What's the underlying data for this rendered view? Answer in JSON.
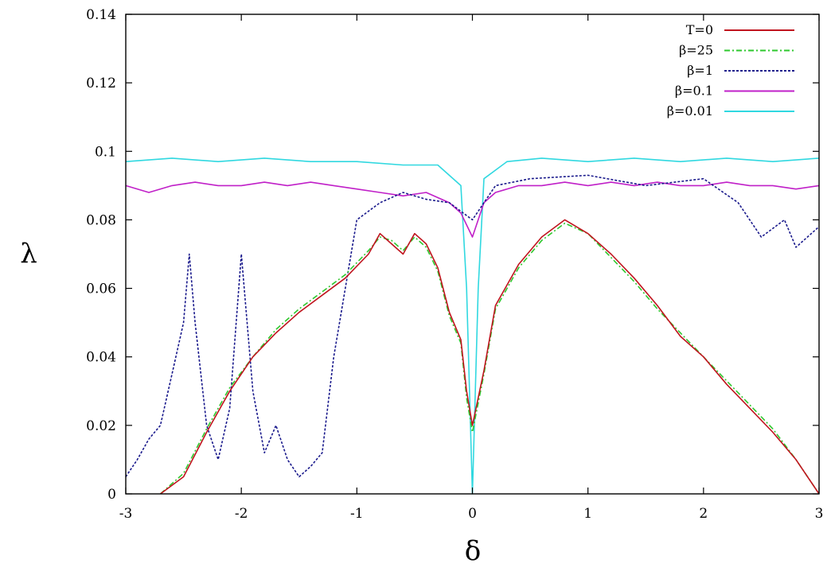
{
  "chart_data": {
    "type": "line",
    "title": "",
    "xlabel": "δ",
    "ylabel": "λ",
    "xlim": [
      -3,
      3
    ],
    "ylim": [
      0,
      0.14
    ],
    "xticks": [
      -3,
      -2,
      -1,
      0,
      1,
      2,
      3
    ],
    "xtick_labels": [
      "-3",
      "-2",
      "-1",
      "0",
      "1",
      "2",
      "3"
    ],
    "yticks": [
      0,
      0.02,
      0.04,
      0.06,
      0.08,
      0.1,
      0.12,
      0.14
    ],
    "ytick_labels": [
      "0",
      "0.02",
      "0.04",
      "0.06",
      "0.08",
      "0.1",
      "0.12",
      "0.14"
    ],
    "grid": false,
    "legend_position": "top-right",
    "colors": {
      "T=0": "#c0141e",
      "β=25": "#2ec82e",
      "β=1": "#1a1a8c",
      "β=0.1": "#c020c8",
      "β=0.01": "#30d8e0"
    },
    "series": [
      {
        "name": "T=0",
        "style": "solid",
        "x": [
          -2.7,
          -2.5,
          -2.3,
          -2.1,
          -1.9,
          -1.7,
          -1.5,
          -1.3,
          -1.1,
          -0.9,
          -0.8,
          -0.7,
          -0.6,
          -0.5,
          -0.4,
          -0.3,
          -0.2,
          -0.1,
          -0.05,
          0.0,
          0.1,
          0.2,
          0.4,
          0.6,
          0.8,
          1.0,
          1.2,
          1.4,
          1.6,
          1.8,
          2.0,
          2.2,
          2.4,
          2.6,
          2.8,
          3.0
        ],
        "y": [
          0.0,
          0.005,
          0.018,
          0.03,
          0.04,
          0.047,
          0.053,
          0.058,
          0.063,
          0.07,
          0.076,
          0.073,
          0.07,
          0.076,
          0.073,
          0.066,
          0.053,
          0.045,
          0.03,
          0.02,
          0.036,
          0.055,
          0.067,
          0.075,
          0.08,
          0.076,
          0.07,
          0.063,
          0.055,
          0.046,
          0.04,
          0.032,
          0.025,
          0.018,
          0.01,
          0.0
        ]
      },
      {
        "name": "β=25",
        "style": "dash-dot",
        "x": [
          -2.7,
          -2.5,
          -2.3,
          -2.1,
          -1.9,
          -1.7,
          -1.5,
          -1.3,
          -1.1,
          -0.9,
          -0.8,
          -0.7,
          -0.6,
          -0.5,
          -0.4,
          -0.3,
          -0.2,
          -0.1,
          -0.05,
          0.0,
          0.1,
          0.2,
          0.4,
          0.6,
          0.8,
          1.0,
          1.2,
          1.4,
          1.6,
          1.8,
          2.0,
          2.2,
          2.4,
          2.6,
          2.8,
          3.0
        ],
        "y": [
          0.0,
          0.006,
          0.019,
          0.031,
          0.04,
          0.048,
          0.054,
          0.059,
          0.064,
          0.071,
          0.075,
          0.074,
          0.071,
          0.075,
          0.072,
          0.065,
          0.052,
          0.044,
          0.028,
          0.018,
          0.035,
          0.054,
          0.066,
          0.074,
          0.079,
          0.076,
          0.069,
          0.062,
          0.054,
          0.047,
          0.04,
          0.033,
          0.026,
          0.019,
          0.01,
          0.0
        ]
      },
      {
        "name": "β=1",
        "style": "dotted",
        "x": [
          -3.0,
          -2.9,
          -2.8,
          -2.7,
          -2.6,
          -2.5,
          -2.45,
          -2.4,
          -2.3,
          -2.2,
          -2.1,
          -2.0,
          -1.9,
          -1.8,
          -1.7,
          -1.6,
          -1.5,
          -1.4,
          -1.3,
          -1.2,
          -1.1,
          -1.0,
          -0.8,
          -0.6,
          -0.4,
          -0.2,
          0.0,
          0.2,
          0.5,
          1.0,
          1.5,
          2.0,
          2.3,
          2.5,
          2.7,
          2.8,
          3.0
        ],
        "y": [
          0.005,
          0.01,
          0.016,
          0.02,
          0.035,
          0.05,
          0.07,
          0.05,
          0.02,
          0.01,
          0.025,
          0.07,
          0.03,
          0.012,
          0.02,
          0.01,
          0.005,
          0.008,
          0.012,
          0.04,
          0.06,
          0.08,
          0.085,
          0.088,
          0.086,
          0.085,
          0.08,
          0.09,
          0.092,
          0.093,
          0.09,
          0.092,
          0.085,
          0.075,
          0.08,
          0.072,
          0.078
        ]
      },
      {
        "name": "β=0.1",
        "style": "solid",
        "x": [
          -3.0,
          -2.8,
          -2.6,
          -2.4,
          -2.2,
          -2.0,
          -1.8,
          -1.6,
          -1.4,
          -1.2,
          -1.0,
          -0.8,
          -0.6,
          -0.4,
          -0.2,
          -0.1,
          0.0,
          0.1,
          0.2,
          0.4,
          0.6,
          0.8,
          1.0,
          1.2,
          1.4,
          1.6,
          1.8,
          2.0,
          2.2,
          2.4,
          2.6,
          2.8,
          3.0
        ],
        "y": [
          0.09,
          0.088,
          0.09,
          0.091,
          0.09,
          0.09,
          0.091,
          0.09,
          0.091,
          0.09,
          0.089,
          0.088,
          0.087,
          0.088,
          0.085,
          0.082,
          0.075,
          0.085,
          0.088,
          0.09,
          0.09,
          0.091,
          0.09,
          0.091,
          0.09,
          0.091,
          0.09,
          0.09,
          0.091,
          0.09,
          0.09,
          0.089,
          0.09
        ]
      },
      {
        "name": "β=0.01",
        "style": "solid",
        "x": [
          -3.0,
          -2.6,
          -2.2,
          -1.8,
          -1.4,
          -1.0,
          -0.6,
          -0.3,
          -0.1,
          -0.05,
          0.0,
          0.05,
          0.1,
          0.3,
          0.6,
          1.0,
          1.4,
          1.8,
          2.2,
          2.6,
          3.0
        ],
        "y": [
          0.097,
          0.098,
          0.097,
          0.098,
          0.097,
          0.097,
          0.096,
          0.096,
          0.09,
          0.06,
          0.0,
          0.06,
          0.092,
          0.097,
          0.098,
          0.097,
          0.098,
          0.097,
          0.098,
          0.097,
          0.098
        ]
      }
    ]
  }
}
